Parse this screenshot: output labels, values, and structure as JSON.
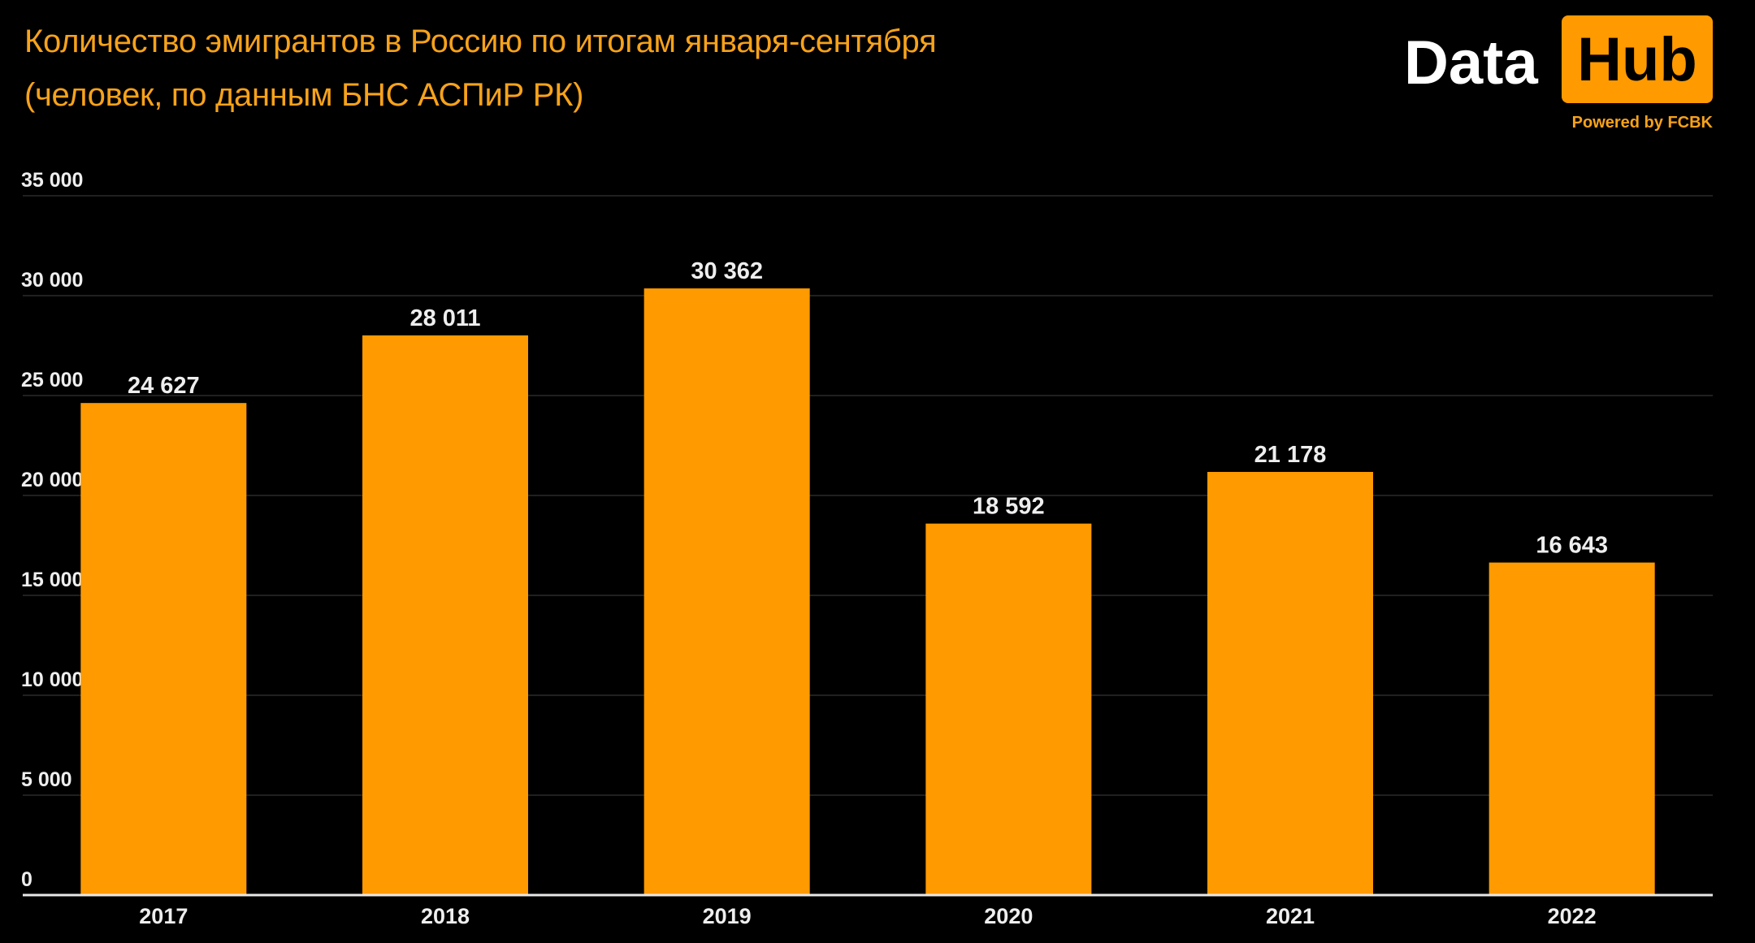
{
  "header": {
    "title_line1": "Количество эмигрантов в Россию по итогам января-сентября",
    "title_line2": "(человек, по данным БНС АСПиР РК)"
  },
  "logo": {
    "word1": "Data",
    "word2": "Hub",
    "tagline": "Powered by FCBK"
  },
  "chart_data": {
    "type": "bar",
    "title": "Количество эмигрантов в Россию по итогам января-сентября (человек, по данным БНС АСПиР РК)",
    "categories": [
      "2017",
      "2018",
      "2019",
      "2020",
      "2021",
      "2022"
    ],
    "values": [
      24627,
      28011,
      30362,
      18592,
      21178,
      16643
    ],
    "data_labels": [
      "24 627",
      "28 011",
      "30 362",
      "18 592",
      "21 178",
      "16 643"
    ],
    "yticks": [
      0,
      5000,
      10000,
      15000,
      20000,
      25000,
      30000,
      35000
    ],
    "ytick_labels": [
      "0",
      "5 000",
      "10 000",
      "15 000",
      "20 000",
      "25 000",
      "30 000",
      "35 000"
    ],
    "ylim": [
      0,
      35000
    ],
    "xlabel": "",
    "ylabel": "",
    "grid": true,
    "legend": "none",
    "colors": {
      "bar": "#ff9a00",
      "background": "#000000",
      "title": "#f7a21b",
      "text": "#eeeeee"
    }
  }
}
